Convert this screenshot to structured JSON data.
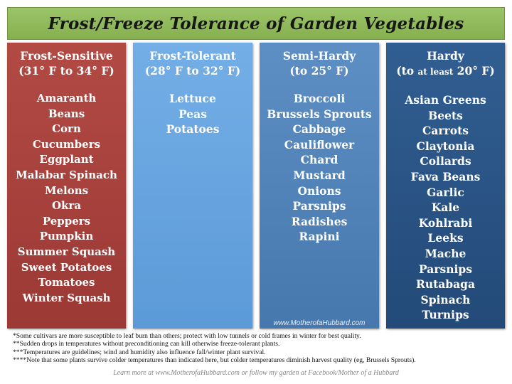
{
  "title": "Frost/Freeze Tolerance of Garden Vegetables",
  "columns": [
    {
      "heading": "Frost-Sensitive",
      "range": "(31° F to 34° F)",
      "items": [
        "Amaranth",
        "Beans",
        "Corn",
        "Cucumbers",
        "Eggplant",
        "Malabar Spinach",
        "Melons",
        "Okra",
        "Peppers",
        "Pumpkin",
        "Summer Squash",
        "Sweet Potatoes",
        "Tomatoes",
        "Winter Squash"
      ]
    },
    {
      "heading": "Frost-Tolerant",
      "range": "(28° F to 32° F)",
      "items": [
        "Lettuce",
        "Peas",
        "Potatoes"
      ]
    },
    {
      "heading": "Semi-Hardy",
      "range": "(to 25° F)",
      "items": [
        "Broccoli",
        "Brussels Sprouts",
        "Cabbage",
        "Cauliflower",
        "Chard",
        "Mustard",
        "Onions",
        "Parsnips",
        "Radishes",
        "Rapini"
      ],
      "watermark": "www.MotherofaHubbard.com"
    },
    {
      "heading": "Hardy",
      "range_pre": "(to ",
      "range_mid": "at least",
      "range_post": " 20° F)",
      "items": [
        "Asian Greens",
        "Beets",
        "Carrots",
        "Claytonia",
        "Collards",
        "Fava Beans",
        "Garlic",
        "Kale",
        "Kohlrabi",
        "Leeks",
        "Mache",
        "Parsnips",
        "Rutabaga",
        "Spinach",
        "Turnips"
      ]
    }
  ],
  "notes": [
    "*Some cultivars are more susceptible to leaf burn than others; protect with low tunnels or cold frames in winter for best quality.",
    "**Sudden drops in temperatures without preconditioning can kill otherwise freeze-tolerant plants.",
    "***Temperatures are guidelines; wind and humidity also influence fall/winter plant survival.",
    "****Note that some plants survive colder temperatures than indicated here, but colder temperatures diminish harvest quality (eg, Brussels Sprouts)."
  ],
  "footer": "Learn more at www.MotherofaHubbard.com or follow my garden at Facebook/Mother of a Hubbard",
  "colors": {
    "title_bg": "#8fb85a",
    "frost_sensitive": "#a8413c",
    "frost_tolerant": "#66a3de",
    "semi_hardy": "#5283ba",
    "hardy": "#2a5485"
  }
}
